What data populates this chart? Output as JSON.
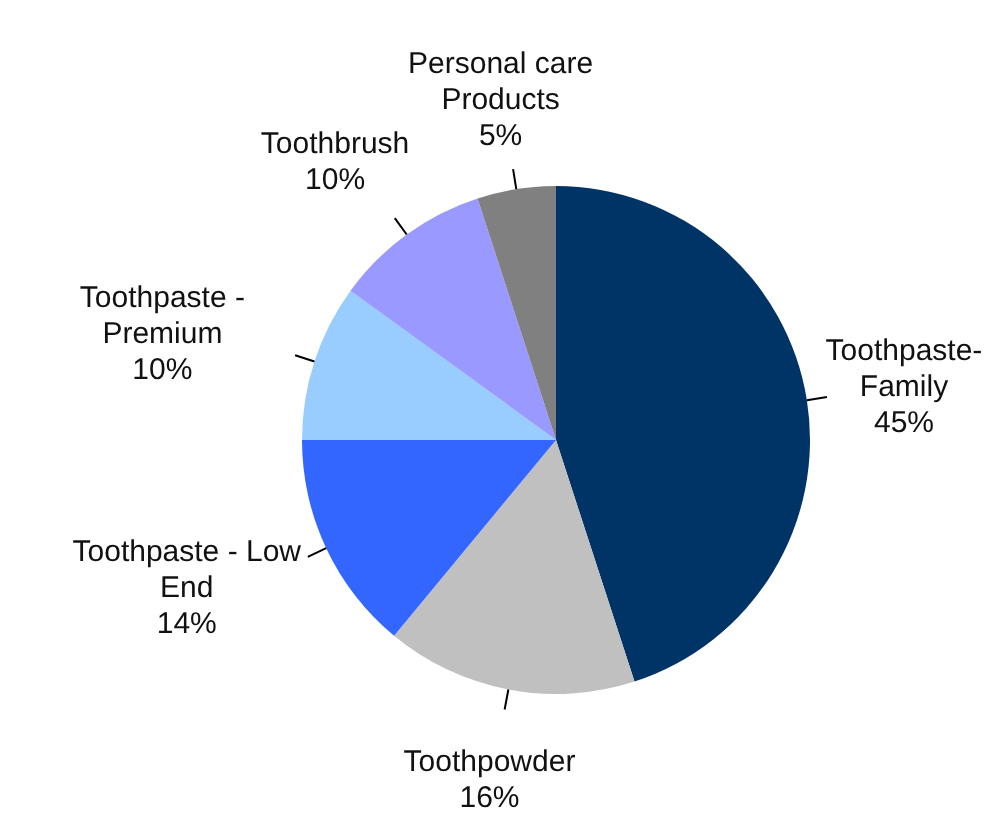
{
  "chart_data": {
    "type": "pie",
    "categories": [
      "Toothpaste-\nFamily",
      "Toothpowder",
      "Toothpaste - Low\nEnd",
      "Toothpaste -\nPremium",
      "Toothbrush",
      "Personal care\nProducts"
    ],
    "values": [
      45,
      16,
      14,
      10,
      10,
      5
    ],
    "colors": [
      "#003366",
      "#c0c0c0",
      "#3366ff",
      "#99ccff",
      "#9999ff",
      "#808080"
    ],
    "value_labels": [
      "45%",
      "16%",
      "14%",
      "10%",
      "10%",
      "5%"
    ]
  }
}
